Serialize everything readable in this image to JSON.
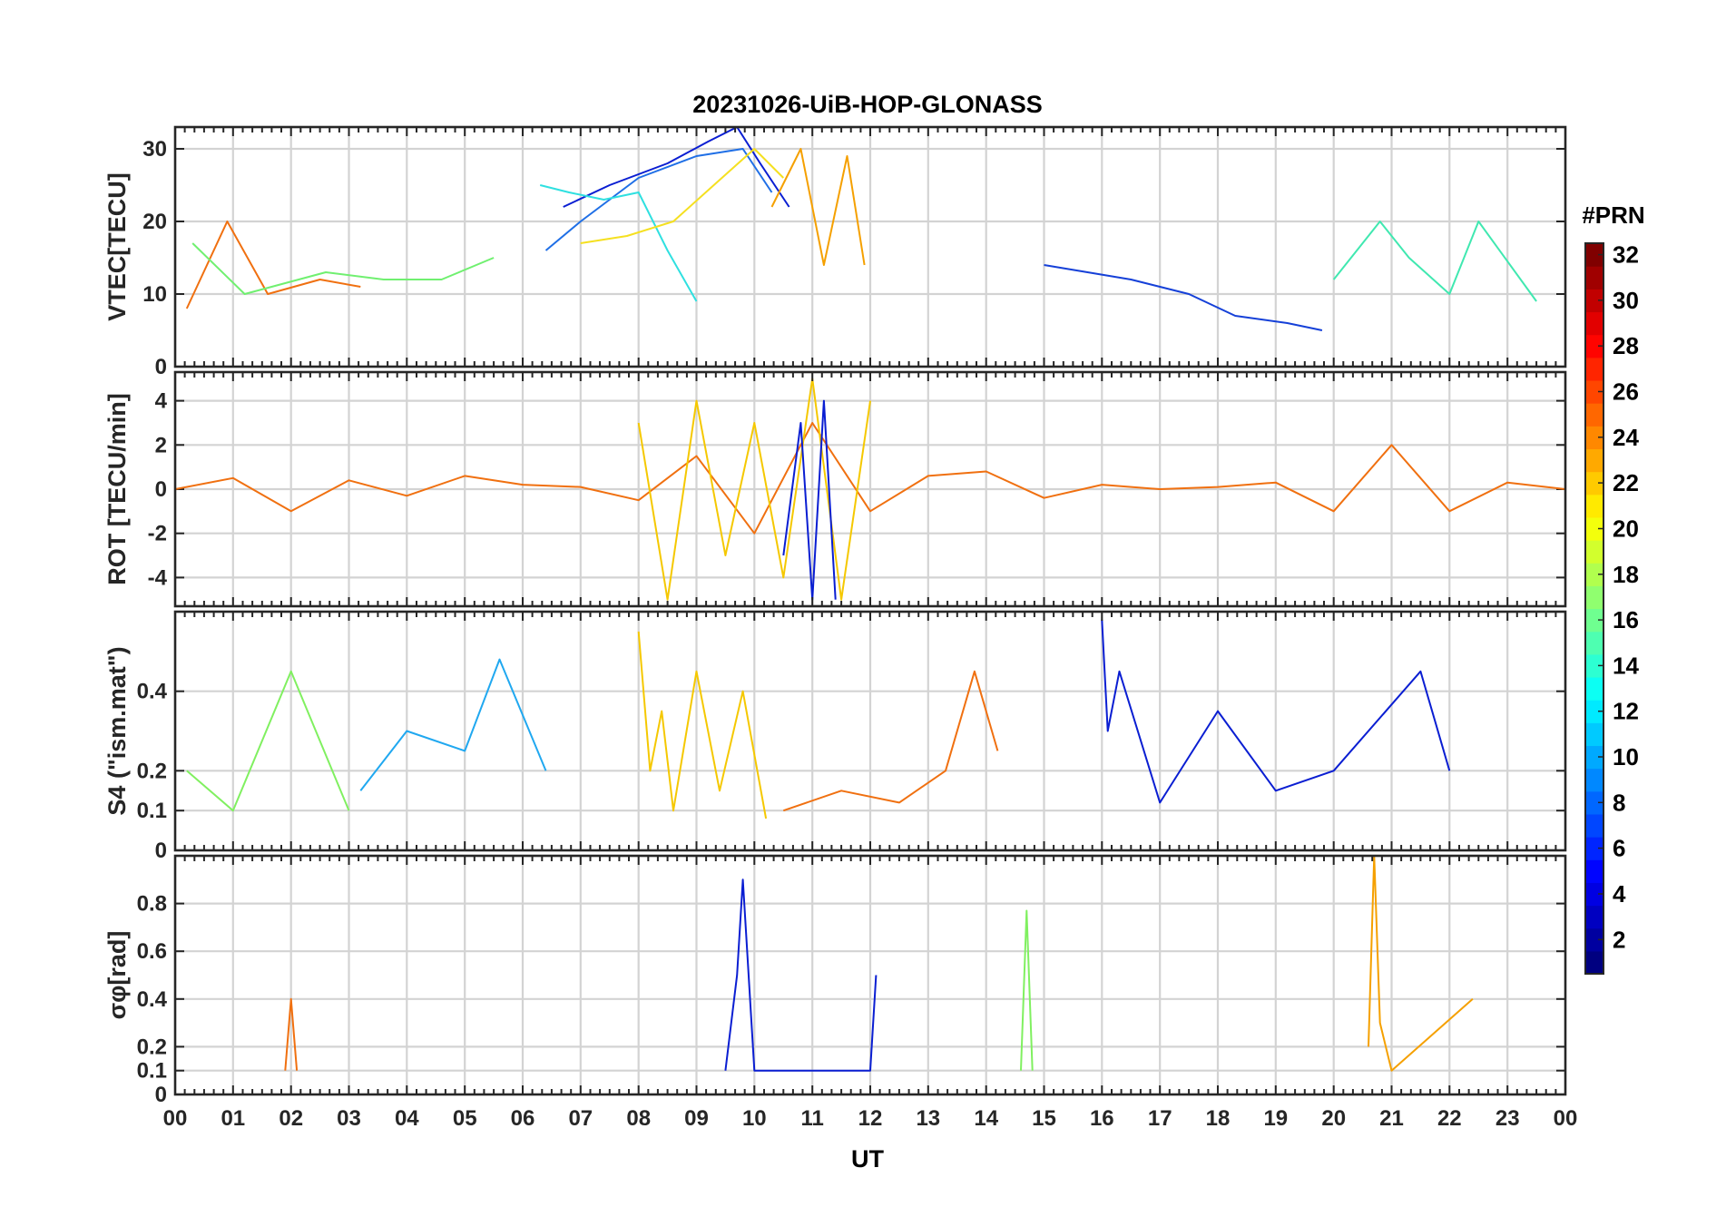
{
  "chart_data": {
    "type": "line",
    "title": "20231026-UiB-HOP-GLONASS",
    "xlabel": "UT",
    "x_tick_labels": [
      "00",
      "01",
      "02",
      "03",
      "04",
      "05",
      "06",
      "07",
      "08",
      "09",
      "10",
      "11",
      "12",
      "13",
      "14",
      "15",
      "16",
      "17",
      "18",
      "19",
      "20",
      "21",
      "22",
      "23",
      "00"
    ],
    "xlim_hours": [
      0,
      24
    ],
    "grid": true,
    "colorbar": {
      "title": "#PRN",
      "range": [
        1,
        32
      ],
      "tick_labels": [
        "2",
        "4",
        "6",
        "8",
        "10",
        "12",
        "14",
        "16",
        "18",
        "20",
        "22",
        "24",
        "26",
        "28",
        "30",
        "32"
      ],
      "colormap": "jet",
      "placement": "right"
    },
    "panels": [
      {
        "ylabel": "VTEC[TECU]",
        "ylim": [
          0,
          33
        ],
        "yticks": [
          "0",
          "10",
          "20",
          "30"
        ],
        "series": [
          {
            "color": "#0a1ed2",
            "x": [
              6.7,
              7.5,
              8.5,
              9.2,
              9.7,
              10.1,
              10.6
            ],
            "y": [
              22,
              25,
              28,
              31,
              33,
              28,
              22
            ]
          },
          {
            "color": "#1f6fe6",
            "x": [
              6.4,
              7.0,
              8.0,
              9.0,
              9.8,
              10.3
            ],
            "y": [
              16,
              20,
              26,
              29,
              30,
              24
            ]
          },
          {
            "color": "#2fe0e0",
            "x": [
              6.3,
              6.8,
              7.4,
              8.0,
              8.5,
              9.0
            ],
            "y": [
              25,
              24,
              23,
              24,
              16,
              9
            ]
          },
          {
            "color": "#f5e020",
            "x": [
              7.0,
              7.8,
              8.6,
              9.3,
              10.0,
              10.5
            ],
            "y": [
              17,
              18,
              20,
              25,
              30,
              26
            ]
          },
          {
            "color": "#f5a000",
            "x": [
              10.3,
              10.8,
              11.2,
              11.6,
              11.9
            ],
            "y": [
              22,
              30,
              14,
              29,
              14
            ]
          },
          {
            "color": "#f07010",
            "x": [
              0.2,
              0.9,
              1.6,
              2.5,
              3.2
            ],
            "y": [
              8,
              20,
              10,
              12,
              11
            ]
          },
          {
            "color": "#70f070",
            "x": [
              0.3,
              1.2,
              2.6,
              3.6,
              4.6,
              5.5
            ],
            "y": [
              17,
              10,
              13,
              12,
              12,
              15
            ]
          },
          {
            "color": "#1540d8",
            "x": [
              15.0,
              16.5,
              17.5,
              18.3,
              19.2,
              19.8
            ],
            "y": [
              14,
              12,
              10,
              7,
              6,
              5
            ]
          },
          {
            "color": "#40e8b0",
            "x": [
              20.0,
              20.8,
              21.3,
              22.0,
              22.5,
              23.5
            ],
            "y": [
              12,
              20,
              15,
              10,
              20,
              9
            ]
          }
        ]
      },
      {
        "ylabel": "ROT [TECU/min]",
        "ylim": [
          -5.3,
          5.3
        ],
        "yticks": [
          "-4",
          "-2",
          "0",
          "2",
          "4"
        ],
        "series": [
          {
            "color": "#f07010",
            "x": [
              0,
              1,
              2,
              3,
              4,
              5,
              6,
              7,
              8,
              9,
              10,
              11,
              12,
              13,
              14,
              15,
              16,
              17,
              18,
              19,
              20,
              21,
              22,
              23,
              24
            ],
            "y": [
              0,
              0.5,
              -1,
              0.4,
              -0.3,
              0.6,
              0.2,
              0.1,
              -0.5,
              1.5,
              -2,
              3,
              -1,
              0.6,
              0.8,
              -0.4,
              0.2,
              0,
              0.1,
              0.3,
              -1,
              2,
              -1,
              0.3,
              0
            ]
          },
          {
            "color": "#f5c800",
            "x": [
              8,
              8.5,
              9,
              9.5,
              10,
              10.5,
              11,
              11.5,
              12
            ],
            "y": [
              3,
              -5,
              4,
              -3,
              3,
              -4,
              5,
              -5,
              4
            ]
          },
          {
            "color": "#0a1ed2",
            "x": [
              10.5,
              10.8,
              11,
              11.2,
              11.4
            ],
            "y": [
              -3,
              3,
              -5,
              4,
              -5
            ]
          }
        ]
      },
      {
        "ylabel": "S4 (\"ism.mat\")",
        "ylim": [
          0,
          0.6
        ],
        "yticks": [
          "0",
          "0.1",
          "0.2",
          "0.4"
        ],
        "series": [
          {
            "color": "#f5c800",
            "x": [
              8.0,
              8.2,
              8.4,
              8.6,
              9.0,
              9.4,
              9.8,
              10.2
            ],
            "y": [
              0.55,
              0.2,
              0.35,
              0.1,
              0.45,
              0.15,
              0.4,
              0.08
            ]
          },
          {
            "color": "#f07010",
            "x": [
              10.5,
              11.5,
              12.5,
              13.3,
              13.8,
              14.2
            ],
            "y": [
              0.1,
              0.15,
              0.12,
              0.2,
              0.45,
              0.25
            ]
          },
          {
            "color": "#0a1ed2",
            "x": [
              16.0,
              16.1,
              16.3,
              17.0,
              18.0,
              19.0,
              20.0,
              21.5,
              22.0
            ],
            "y": [
              0.58,
              0.3,
              0.45,
              0.12,
              0.35,
              0.15,
              0.2,
              0.45,
              0.2
            ]
          },
          {
            "color": "#20a8f0",
            "x": [
              3.2,
              4.0,
              5.0,
              5.6,
              6.4
            ],
            "y": [
              0.15,
              0.3,
              0.25,
              0.48,
              0.2
            ]
          },
          {
            "color": "#80f060",
            "x": [
              0.2,
              1.0,
              2.0,
              3.0
            ],
            "y": [
              0.2,
              0.1,
              0.45,
              0.1
            ]
          }
        ]
      },
      {
        "ylabel": "σφ[rad]",
        "ylim": [
          0,
          1.0
        ],
        "yticks": [
          "0",
          "0.1",
          "0.2",
          "0.4",
          "0.6",
          "0.8"
        ],
        "series": [
          {
            "color": "#0a1ed2",
            "x": [
              9.5,
              9.7,
              9.8,
              10.0,
              12.0,
              12.1
            ],
            "y": [
              0.1,
              0.5,
              0.9,
              0.1,
              0.1,
              0.5
            ]
          },
          {
            "color": "#f5a000",
            "x": [
              20.6,
              20.7,
              20.8,
              21.0,
              22.4
            ],
            "y": [
              0.2,
              1.0,
              0.3,
              0.1,
              0.4
            ]
          },
          {
            "color": "#f07010",
            "x": [
              1.9,
              2.0,
              2.1
            ],
            "y": [
              0.1,
              0.4,
              0.1
            ]
          },
          {
            "color": "#80f060",
            "x": [
              14.6,
              14.7,
              14.8
            ],
            "y": [
              0.1,
              0.77,
              0.1
            ]
          }
        ]
      }
    ]
  }
}
